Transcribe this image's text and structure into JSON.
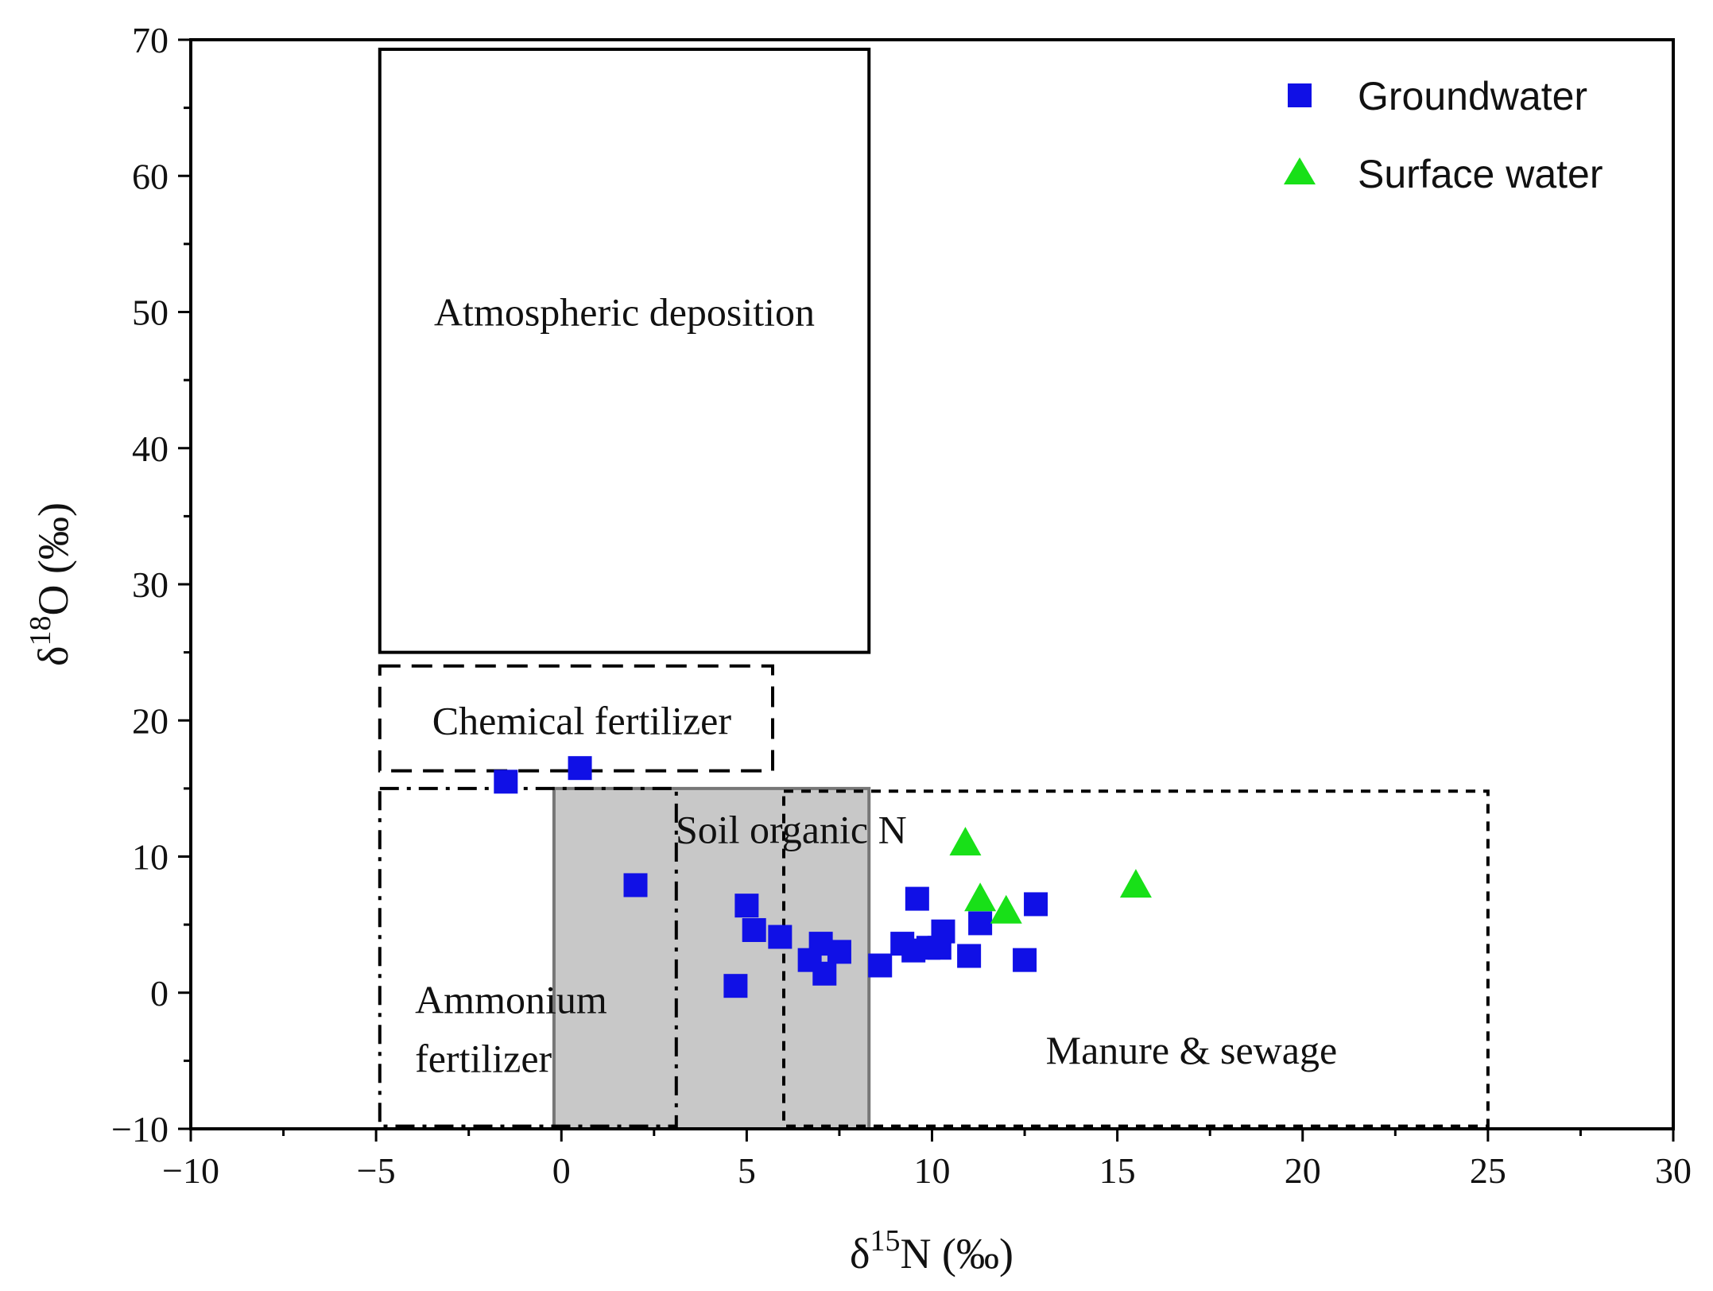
{
  "chart_data": {
    "type": "scatter",
    "title": "",
    "xlabel": {
      "prefix": "δ",
      "sup": "15",
      "main": "N (‰)"
    },
    "ylabel": {
      "prefix": "δ",
      "sup": "18",
      "main": "O (‰)"
    },
    "xlim": [
      -10,
      30
    ],
    "ylim": [
      -10,
      70
    ],
    "x_ticks": [
      -10,
      -5,
      0,
      5,
      10,
      15,
      20,
      25,
      30
    ],
    "y_ticks": [
      -10,
      0,
      10,
      20,
      30,
      40,
      50,
      60,
      70
    ],
    "x_tick_labels": [
      "−10",
      "−5",
      "0",
      "5",
      "10",
      "15",
      "20",
      "25",
      "30"
    ],
    "y_tick_labels": [
      "−10",
      "0",
      "10",
      "20",
      "30",
      "40",
      "50",
      "60",
      "70"
    ],
    "grid": false,
    "legend_position": "top-right",
    "colors": {
      "groundwater": "#1010e6",
      "surface_water": "#18e018",
      "soil_fill": "#c8c8c8",
      "soil_edge": "#777777"
    },
    "regions": [
      {
        "name": "Soil organic N",
        "label": "Soil organic N",
        "x": [
          -0.2,
          8.3
        ],
        "y": [
          -10,
          15
        ],
        "style": "filled"
      },
      {
        "name": "Atmospheric deposition",
        "label": "Atmospheric deposition",
        "x": [
          -4.9,
          8.3
        ],
        "y": [
          25,
          69.3
        ],
        "style": "solid"
      },
      {
        "name": "Chemical fertilizer",
        "label": "Chemical fertilizer",
        "x": [
          -4.9,
          5.7
        ],
        "y": [
          16.3,
          24
        ],
        "style": "dashed"
      },
      {
        "name": "Ammonium fertilizer",
        "label": [
          "Ammonium",
          "fertilizer"
        ],
        "x": [
          -4.9,
          3.1
        ],
        "y": [
          -9.8,
          15
        ],
        "style": "dashdot"
      },
      {
        "name": "Manure & sewage",
        "label": "Manure & sewage",
        "x": [
          6.0,
          25.0
        ],
        "y": [
          -9.8,
          14.8
        ],
        "style": "dotted"
      }
    ],
    "series": [
      {
        "name": "Groundwater",
        "marker": "square",
        "x": [
          -1.5,
          0.5,
          2.0,
          5.0,
          5.2,
          5.9,
          4.7,
          6.7,
          7.0,
          7.1,
          7.5,
          8.6,
          9.2,
          9.6,
          9.5,
          9.9,
          10.2,
          10.3,
          11.0,
          11.3,
          12.5,
          12.8
        ],
        "y": [
          15.5,
          16.5,
          7.9,
          6.4,
          4.6,
          4.1,
          0.5,
          2.4,
          3.6,
          1.4,
          3.0,
          2.0,
          3.6,
          6.9,
          3.1,
          3.3,
          3.3,
          4.5,
          2.7,
          5.1,
          2.4,
          6.5
        ]
      },
      {
        "name": "Surface water",
        "marker": "triangle",
        "x": [
          10.9,
          11.3,
          12.0,
          15.5
        ],
        "y": [
          10.9,
          6.8,
          5.9,
          7.8
        ]
      }
    ]
  }
}
